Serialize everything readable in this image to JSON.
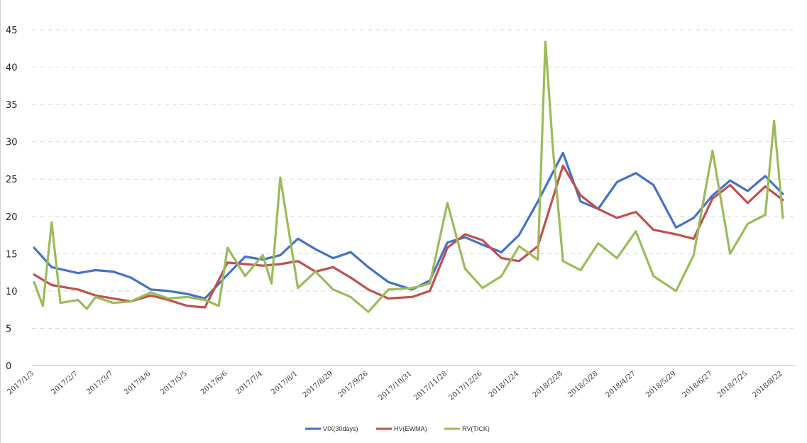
{
  "chart_data": {
    "type": "line",
    "title": "",
    "xlabel": "",
    "ylabel": "",
    "ylim": [
      0,
      45
    ],
    "yticks": [
      0,
      5,
      10,
      15,
      20,
      25,
      30,
      35,
      40,
      45
    ],
    "grid": "horizontal-dashed",
    "legend": "bottom-center",
    "x_tick_labels": [
      "2017/1/3",
      "2017/2/7",
      "2017/3/7",
      "2017/4/6",
      "2017/5/5",
      "2017/6/6",
      "2017/7/4",
      "2017/8/1",
      "2017/8/29",
      "2017/9/26",
      "2017/10/31",
      "2017/11/28",
      "2017/12/26",
      "2018/1/24",
      "2018/2/28",
      "2018/3/28",
      "2018/4/27",
      "2018/5/29",
      "2018/6/27",
      "2018/7/25",
      "2018/8/22"
    ],
    "series": [
      {
        "name": "VIX(30days)",
        "color": "#4472c4",
        "x": [
          "2017/1/3",
          "2017/1/17",
          "2017/2/7",
          "2017/2/21",
          "2017/3/7",
          "2017/3/21",
          "2017/4/6",
          "2017/4/20",
          "2017/5/5",
          "2017/5/19",
          "2017/6/6",
          "2017/6/20",
          "2017/7/4",
          "2017/7/18",
          "2017/8/1",
          "2017/8/15",
          "2017/8/29",
          "2017/9/12",
          "2017/9/26",
          "2017/10/12",
          "2017/10/31",
          "2017/11/14",
          "2017/11/28",
          "2017/12/12",
          "2017/12/26",
          "2018/1/10",
          "2018/1/24",
          "2018/2/8",
          "2018/2/28",
          "2018/3/14",
          "2018/3/28",
          "2018/4/12",
          "2018/4/27",
          "2018/5/11",
          "2018/5/29",
          "2018/6/12",
          "2018/6/27",
          "2018/7/11",
          "2018/7/25",
          "2018/8/8",
          "2018/8/22"
        ],
        "values": [
          15.8,
          13.2,
          12.4,
          12.8,
          12.6,
          11.8,
          10.2,
          10.0,
          9.6,
          9.0,
          12.2,
          14.6,
          14.2,
          14.8,
          17.0,
          15.6,
          14.4,
          15.2,
          13.2,
          11.2,
          10.2,
          11.4,
          16.5,
          17.2,
          16.2,
          15.2,
          17.5,
          22.0,
          28.5,
          22.0,
          21.0,
          24.6,
          25.8,
          24.2,
          18.5,
          19.8,
          22.8,
          24.8,
          23.4,
          25.4,
          23.0
        ]
      },
      {
        "name": "HV(EWMA)",
        "color": "#c0504d",
        "x": [
          "2017/1/3",
          "2017/1/17",
          "2017/2/7",
          "2017/2/21",
          "2017/3/7",
          "2017/3/21",
          "2017/4/6",
          "2017/4/20",
          "2017/5/5",
          "2017/5/19",
          "2017/6/6",
          "2017/6/20",
          "2017/7/4",
          "2017/7/18",
          "2017/8/1",
          "2017/8/15",
          "2017/8/29",
          "2017/9/12",
          "2017/9/26",
          "2017/10/12",
          "2017/10/31",
          "2017/11/14",
          "2017/11/28",
          "2017/12/12",
          "2017/12/26",
          "2018/1/10",
          "2018/1/24",
          "2018/2/8",
          "2018/2/28",
          "2018/3/14",
          "2018/3/28",
          "2018/4/12",
          "2018/4/27",
          "2018/5/11",
          "2018/5/29",
          "2018/6/12",
          "2018/6/27",
          "2018/7/11",
          "2018/7/25",
          "2018/8/8",
          "2018/8/22"
        ],
        "values": [
          12.2,
          10.8,
          10.2,
          9.4,
          9.0,
          8.6,
          9.4,
          8.8,
          8.0,
          7.8,
          13.8,
          13.6,
          13.4,
          13.6,
          14.0,
          12.6,
          13.2,
          11.8,
          10.2,
          9.0,
          9.2,
          10.0,
          15.8,
          17.6,
          16.8,
          14.4,
          14.0,
          16.0,
          26.8,
          22.8,
          21.0,
          19.8,
          20.6,
          18.2,
          17.6,
          17.0,
          22.4,
          24.2,
          21.8,
          24.0,
          22.2
        ]
      },
      {
        "name": "RV(TICK)",
        "color": "#9bbb59",
        "x": [
          "2017/1/3",
          "2017/1/10",
          "2017/1/17",
          "2017/1/24",
          "2017/2/7",
          "2017/2/14",
          "2017/2/21",
          "2017/3/7",
          "2017/3/21",
          "2017/4/6",
          "2017/4/20",
          "2017/5/5",
          "2017/5/19",
          "2017/5/30",
          "2017/6/6",
          "2017/6/20",
          "2017/7/4",
          "2017/7/11",
          "2017/7/18",
          "2017/8/1",
          "2017/8/15",
          "2017/8/29",
          "2017/9/12",
          "2017/9/26",
          "2017/10/12",
          "2017/10/31",
          "2017/11/14",
          "2017/11/28",
          "2017/12/12",
          "2017/12/26",
          "2018/1/10",
          "2018/1/24",
          "2018/2/8",
          "2018/2/14",
          "2018/2/20",
          "2018/2/28",
          "2018/3/14",
          "2018/3/28",
          "2018/4/12",
          "2018/4/27",
          "2018/5/11",
          "2018/5/29",
          "2018/6/12",
          "2018/6/27",
          "2018/7/11",
          "2018/7/25",
          "2018/8/8",
          "2018/8/15",
          "2018/8/22"
        ],
        "values": [
          11.2,
          8.0,
          19.2,
          8.4,
          8.8,
          7.6,
          9.2,
          8.4,
          8.6,
          9.8,
          9.0,
          9.2,
          8.8,
          8.0,
          15.8,
          12.0,
          14.8,
          11.0,
          25.2,
          10.4,
          12.6,
          10.2,
          9.2,
          7.2,
          10.2,
          10.4,
          11.0,
          21.8,
          13.0,
          10.4,
          12.0,
          16.0,
          14.2,
          43.4,
          29.0,
          14.0,
          12.8,
          16.4,
          14.4,
          18.0,
          12.0,
          10.0,
          14.8,
          28.8,
          15.0,
          19.0,
          20.2,
          32.8,
          19.8
        ]
      }
    ]
  }
}
